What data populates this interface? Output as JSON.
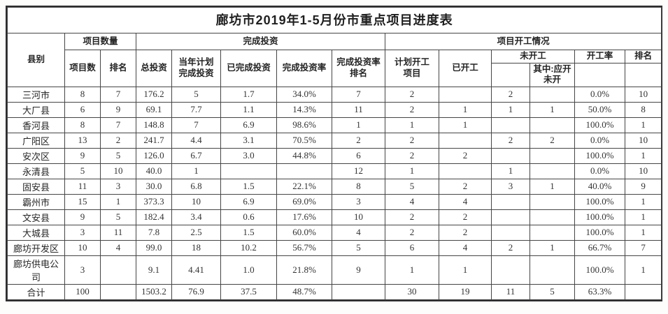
{
  "title": "廊坊市2019年1-5月份市重点项目进度表",
  "table": {
    "header": {
      "county": "县别",
      "group_count": "项目数量",
      "group_invest": "完成投资",
      "group_start": "项目开工情况",
      "project_count": "项目数",
      "count_rank": "排名",
      "total_invest": "总投资",
      "plan_invest": "当年计划\n完成投资",
      "done_invest": "已完成投资",
      "invest_rate": "完成投资率",
      "invest_rate_rank": "完成投资率\n排名",
      "plan_start": "计划开工\n项目",
      "started": "已开工",
      "not_started": "未开工",
      "not_started_sub1": "",
      "should_start_not_started": "其中:应开\n未开",
      "start_rate": "开工率",
      "start_rank": "排名",
      "hr3_blank_under_not_started": "",
      "hr3_blank_under_start_rate": "",
      "hr3_blank_under_start_rank": ""
    },
    "rows": [
      {
        "county": "三河市",
        "cells": [
          "8",
          "7",
          "176.2",
          "5",
          "1.7",
          "34.0%",
          "7",
          "2",
          "",
          "2",
          "",
          "0.0%",
          "10"
        ]
      },
      {
        "county": "大厂县",
        "cells": [
          "6",
          "9",
          "69.1",
          "7.7",
          "1.1",
          "14.3%",
          "11",
          "2",
          "1",
          "1",
          "1",
          "50.0%",
          "8"
        ]
      },
      {
        "county": "香河县",
        "cells": [
          "8",
          "7",
          "148.8",
          "7",
          "6.9",
          "98.6%",
          "1",
          "1",
          "1",
          "",
          "",
          "100.0%",
          "1"
        ]
      },
      {
        "county": "广阳区",
        "cells": [
          "13",
          "2",
          "241.7",
          "4.4",
          "3.1",
          "70.5%",
          "2",
          "2",
          "",
          "2",
          "2",
          "0.0%",
          "10"
        ]
      },
      {
        "county": "安次区",
        "cells": [
          "9",
          "5",
          "126.0",
          "6.7",
          "3.0",
          "44.8%",
          "6",
          "2",
          "2",
          "",
          "",
          "100.0%",
          "1"
        ]
      },
      {
        "county": "永清县",
        "cells": [
          "5",
          "10",
          "40.0",
          "1",
          "",
          "",
          "12",
          "1",
          "",
          "1",
          "",
          "0.0%",
          "10"
        ]
      },
      {
        "county": "固安县",
        "cells": [
          "11",
          "3",
          "30.0",
          "6.8",
          "1.5",
          "22.1%",
          "8",
          "5",
          "2",
          "3",
          "1",
          "40.0%",
          "9"
        ]
      },
      {
        "county": "霸州市",
        "cells": [
          "15",
          "1",
          "373.3",
          "10",
          "6.9",
          "69.0%",
          "3",
          "4",
          "4",
          "",
          "",
          "100.0%",
          "1"
        ]
      },
      {
        "county": "文安县",
        "cells": [
          "9",
          "5",
          "182.4",
          "3.4",
          "0.6",
          "17.6%",
          "10",
          "2",
          "2",
          "",
          "",
          "100.0%",
          "1"
        ]
      },
      {
        "county": "大城县",
        "cells": [
          "3",
          "11",
          "7.8",
          "2.5",
          "1.5",
          "60.0%",
          "4",
          "2",
          "2",
          "",
          "",
          "100.0%",
          "1"
        ]
      },
      {
        "county": "廊坊开发区",
        "cells": [
          "10",
          "4",
          "99.0",
          "18",
          "10.2",
          "56.7%",
          "5",
          "6",
          "4",
          "2",
          "1",
          "66.7%",
          "7"
        ]
      },
      {
        "county": "廊坊供电公司",
        "cells": [
          "3",
          "",
          "9.1",
          "4.41",
          "1.0",
          "21.8%",
          "9",
          "1",
          "1",
          "",
          "",
          "100.0%",
          "1"
        ]
      },
      {
        "county": "合计",
        "cells": [
          "100",
          "",
          "1503.2",
          "76.9",
          "37.5",
          "48.7%",
          "",
          "30",
          "19",
          "11",
          "5",
          "63.3%",
          ""
        ]
      }
    ]
  },
  "chart_data": {
    "type": "table",
    "title": "廊坊市2019年1-5月份市重点项目进度表",
    "columns": [
      "县别",
      "项目数",
      "排名",
      "总投资",
      "当年计划完成投资",
      "已完成投资",
      "完成投资率",
      "完成投资率排名",
      "计划开工项目",
      "已开工",
      "未开工",
      "其中:应开未开",
      "开工率",
      "排名"
    ],
    "column_groups": [
      "项目数量",
      "完成投资",
      "项目开工情况"
    ],
    "rows": [
      [
        "三河市",
        8,
        7,
        176.2,
        5,
        1.7,
        "34.0%",
        7,
        2,
        null,
        2,
        null,
        "0.0%",
        10
      ],
      [
        "大厂县",
        6,
        9,
        69.1,
        7.7,
        1.1,
        "14.3%",
        11,
        2,
        1,
        1,
        1,
        "50.0%",
        8
      ],
      [
        "香河县",
        8,
        7,
        148.8,
        7,
        6.9,
        "98.6%",
        1,
        1,
        1,
        null,
        null,
        "100.0%",
        1
      ],
      [
        "广阳区",
        13,
        2,
        241.7,
        4.4,
        3.1,
        "70.5%",
        2,
        2,
        null,
        2,
        2,
        "0.0%",
        10
      ],
      [
        "安次区",
        9,
        5,
        126.0,
        6.7,
        3.0,
        "44.8%",
        6,
        2,
        2,
        null,
        null,
        "100.0%",
        1
      ],
      [
        "永清县",
        5,
        10,
        40.0,
        1,
        null,
        null,
        12,
        1,
        null,
        1,
        null,
        "0.0%",
        10
      ],
      [
        "固安县",
        11,
        3,
        30.0,
        6.8,
        1.5,
        "22.1%",
        8,
        5,
        2,
        3,
        1,
        "40.0%",
        9
      ],
      [
        "霸州市",
        15,
        1,
        373.3,
        10,
        6.9,
        "69.0%",
        3,
        4,
        4,
        null,
        null,
        "100.0%",
        1
      ],
      [
        "文安县",
        9,
        5,
        182.4,
        3.4,
        0.6,
        "17.6%",
        10,
        2,
        2,
        null,
        null,
        "100.0%",
        1
      ],
      [
        "大城县",
        3,
        11,
        7.8,
        2.5,
        1.5,
        "60.0%",
        4,
        2,
        2,
        null,
        null,
        "100.0%",
        1
      ],
      [
        "廊坊开发区",
        10,
        4,
        99.0,
        18,
        10.2,
        "56.7%",
        5,
        6,
        4,
        2,
        1,
        "66.7%",
        7
      ],
      [
        "廊坊供电公司",
        3,
        null,
        9.1,
        4.41,
        1.0,
        "21.8%",
        9,
        1,
        1,
        null,
        null,
        "100.0%",
        1
      ],
      [
        "合计",
        100,
        null,
        1503.2,
        76.9,
        37.5,
        "48.7%",
        null,
        30,
        19,
        11,
        5,
        "63.3%",
        null
      ]
    ]
  }
}
